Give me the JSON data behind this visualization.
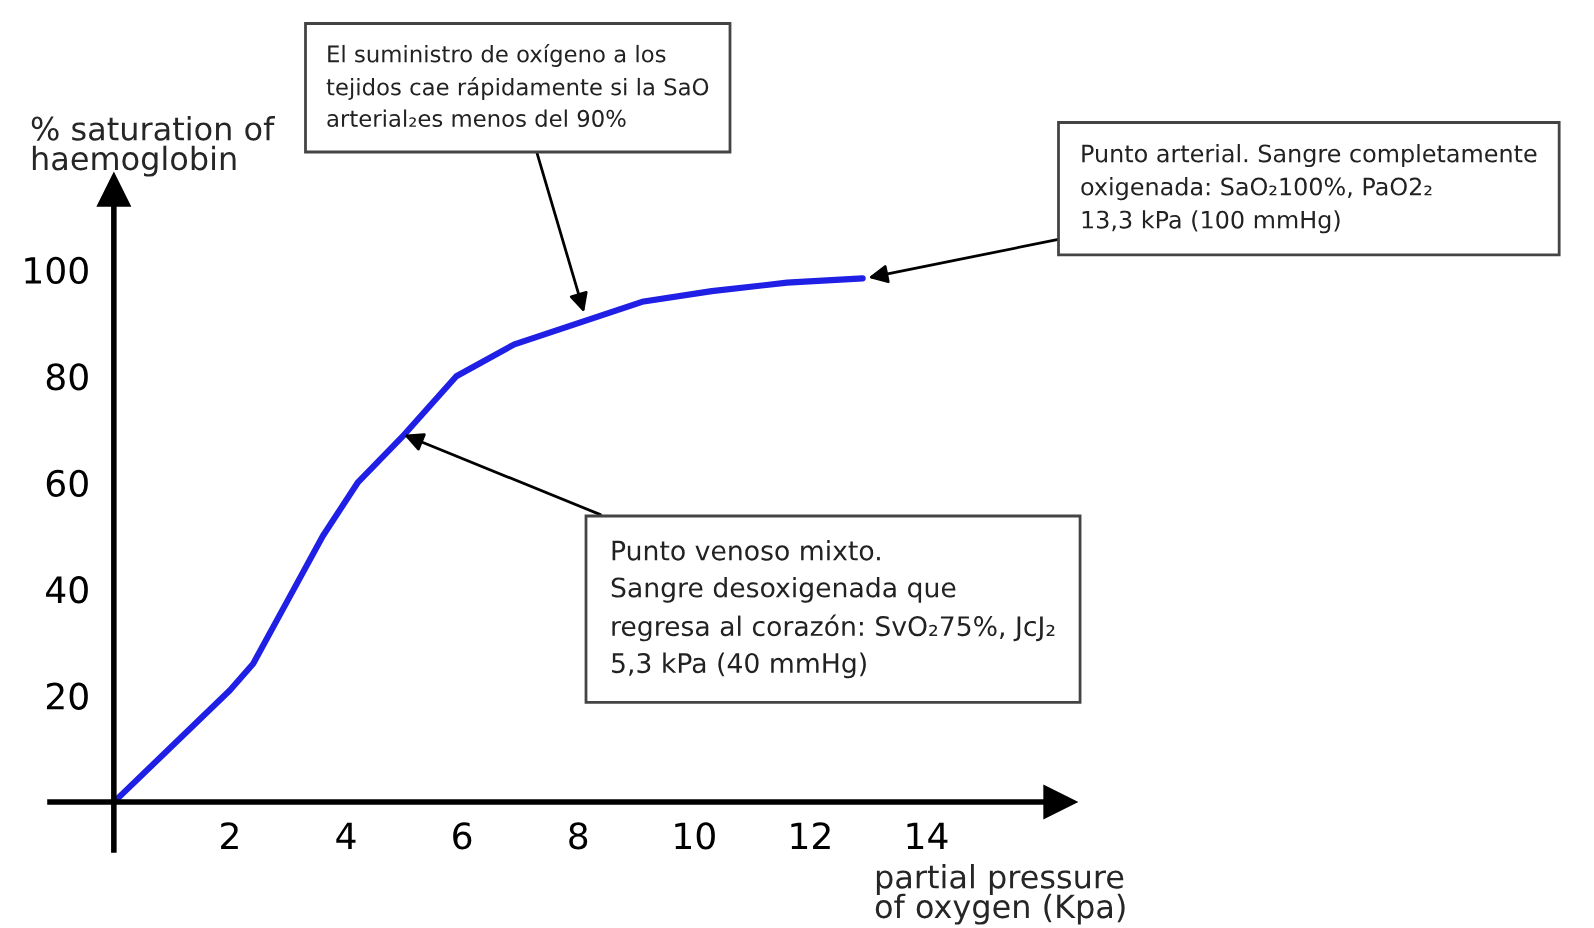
{
  "chart_data": {
    "type": "line",
    "xlabel": "partial pressure\nof oxygen (Kpa)",
    "ylabel": "% saturation of\nhaemoglobin",
    "x": [
      0,
      2.0,
      2.4,
      3.0,
      3.6,
      4.2,
      5.0,
      5.9,
      6.9,
      8.0,
      9.1,
      10.3,
      11.6,
      12.9
    ],
    "series": [
      {
        "color": "#1f1fe6",
        "values": [
          0,
          21,
          26,
          38,
          50,
          60,
          69,
          80,
          86,
          90,
          94,
          96,
          97.6,
          98.4
        ]
      }
    ],
    "xlim": [
      -1.1,
      16.3
    ],
    "ylim": [
      -9,
      115
    ],
    "xticks": [
      2,
      4,
      6,
      8,
      10,
      12,
      14
    ],
    "yticks": [
      20,
      40,
      60,
      80,
      100
    ],
    "grid": false,
    "legend": false,
    "marker": "none",
    "line_style": "solid",
    "annotations": [
      {
        "text": "El suministro de oxígeno a los\ntejidos cae rápidamente si la SaO\narterial₂es menos del 90%",
        "x": 8.1,
        "y": 92
      },
      {
        "text": "Punto arterial. Sangre completamente\noxigenada: SaO₂100%, PaO2₂\n13,3 kPa (100 mmHg)",
        "x": 13.0,
        "y": 98.5
      },
      {
        "text": "Punto venoso mixto.\nSangre desoxigenada que\nregresa al corazón: SvO₂75%, JcJ₂\n5,3 kPa (40 mmHg)",
        "x": 5.0,
        "y": 69
      }
    ]
  }
}
